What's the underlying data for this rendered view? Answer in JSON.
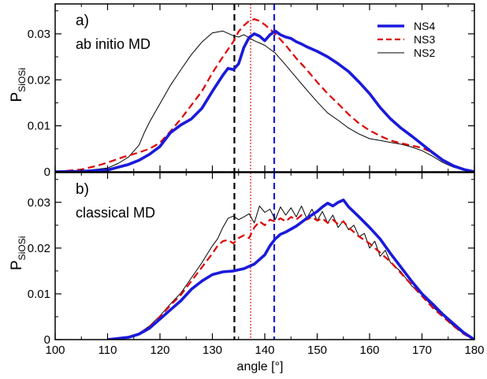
{
  "chart_data": [
    {
      "type": "line",
      "panel_label": "a)",
      "annotation": "ab initio MD",
      "ylabel_main": "P",
      "ylabel_sub": "SiOSi",
      "xlim": [
        100,
        180
      ],
      "ylim": [
        0,
        0.0365
      ],
      "x_ticks": [
        100,
        110,
        120,
        130,
        140,
        150,
        160,
        170,
        180
      ],
      "y_ticks": [
        "0",
        "0.01",
        "0.02",
        "0.03"
      ],
      "y_tick_values": [
        0,
        0.01,
        0.02,
        0.03
      ],
      "vlines": [
        {
          "x": 134.2,
          "color": "#000000",
          "style": "dashed"
        },
        {
          "x": 137.3,
          "color": "#dd0000",
          "style": "dotted"
        },
        {
          "x": 141.8,
          "color": "#1a1adb",
          "style": "dashed"
        }
      ],
      "legend": [
        {
          "name": "NS4",
          "color": "#1a1adb",
          "style": "solid-thick"
        },
        {
          "name": "NS3",
          "color": "#dd0000",
          "style": "dashed"
        },
        {
          "name": "NS2",
          "color": "#000000",
          "style": "solid-thin"
        }
      ],
      "series": [
        {
          "name": "NS4",
          "color": "#1a1adb",
          "x": [
            100,
            105,
            110,
            112,
            114,
            116,
            118,
            120,
            122,
            124,
            126,
            128,
            130,
            132,
            133,
            134,
            135,
            136,
            137,
            138,
            139,
            140,
            141,
            142,
            143,
            144,
            145,
            146,
            147,
            148,
            150,
            152,
            154,
            156,
            158,
            160,
            162,
            164,
            166,
            168,
            170,
            172,
            174,
            176,
            178,
            180
          ],
          "y": [
            0,
            0.0001,
            0.0004,
            0.001,
            0.0016,
            0.0025,
            0.0038,
            0.0055,
            0.0085,
            0.0102,
            0.0115,
            0.0138,
            0.0175,
            0.021,
            0.0225,
            0.0222,
            0.0235,
            0.027,
            0.0292,
            0.03,
            0.0295,
            0.0285,
            0.0298,
            0.0306,
            0.0298,
            0.0293,
            0.029,
            0.0283,
            0.0278,
            0.0272,
            0.0262,
            0.025,
            0.0235,
            0.0218,
            0.0195,
            0.017,
            0.014,
            0.0115,
            0.0095,
            0.0078,
            0.006,
            0.0042,
            0.0025,
            0.0013,
            0.0005,
            0
          ]
        },
        {
          "name": "NS3",
          "color": "#dd0000",
          "x": [
            100,
            105,
            108,
            110,
            113,
            116,
            118,
            120,
            122,
            124,
            126,
            128,
            130,
            132,
            134,
            135,
            136,
            137,
            138,
            139,
            140,
            141,
            142,
            144,
            146,
            148,
            150,
            152,
            154,
            156,
            158,
            160,
            162,
            164,
            166,
            168,
            170,
            172,
            174,
            176,
            178,
            180
          ],
          "y": [
            0,
            0.0005,
            0.0013,
            0.002,
            0.0032,
            0.0042,
            0.005,
            0.0063,
            0.0088,
            0.0115,
            0.0145,
            0.0175,
            0.0215,
            0.025,
            0.0283,
            0.0305,
            0.0318,
            0.0328,
            0.0332,
            0.0328,
            0.032,
            0.031,
            0.03,
            0.0275,
            0.0247,
            0.0222,
            0.0195,
            0.017,
            0.0148,
            0.0125,
            0.0105,
            0.009,
            0.0078,
            0.0068,
            0.0062,
            0.0057,
            0.0052,
            0.0042,
            0.0025,
            0.0012,
            0.0005,
            0
          ]
        },
        {
          "name": "NS2",
          "color": "#000000",
          "x": [
            100,
            105,
            110,
            112,
            114,
            116,
            117,
            118,
            119,
            120,
            122,
            124,
            126,
            128,
            130,
            132,
            134,
            135,
            136,
            138,
            140,
            142,
            144,
            146,
            148,
            150,
            152,
            154,
            156,
            158,
            160,
            162,
            164,
            166,
            168,
            170,
            172,
            174,
            176,
            178,
            180
          ],
          "y": [
            0,
            0.0002,
            0.0008,
            0.0018,
            0.0032,
            0.0058,
            0.0085,
            0.0108,
            0.0128,
            0.0148,
            0.0188,
            0.0222,
            0.0255,
            0.0282,
            0.0302,
            0.0306,
            0.0296,
            0.0293,
            0.0298,
            0.0285,
            0.0275,
            0.0258,
            0.0232,
            0.0205,
            0.0178,
            0.0152,
            0.0128,
            0.0112,
            0.0095,
            0.0082,
            0.0072,
            0.0068,
            0.0064,
            0.006,
            0.0054,
            0.0046,
            0.0034,
            0.002,
            0.001,
            0.0003,
            0
          ]
        }
      ]
    },
    {
      "type": "line",
      "panel_label": "b)",
      "annotation": "classical MD",
      "ylabel_main": "P",
      "ylabel_sub": "SiOSi",
      "xlabel": "angle [°]",
      "xlim": [
        100,
        180
      ],
      "ylim": [
        0,
        0.0365
      ],
      "x_ticks": [
        100,
        110,
        120,
        130,
        140,
        150,
        160,
        170,
        180
      ],
      "y_ticks": [
        "0",
        "0.01",
        "0.02",
        "0.03"
      ],
      "y_tick_values": [
        0,
        0.01,
        0.02,
        0.03
      ],
      "vlines": [
        {
          "x": 134.2,
          "color": "#000000",
          "style": "dashed"
        },
        {
          "x": 137.3,
          "color": "#dd0000",
          "style": "dotted"
        },
        {
          "x": 141.8,
          "color": "#1a1adb",
          "style": "dashed"
        }
      ],
      "series": [
        {
          "name": "NS4",
          "color": "#1a1adb",
          "x": [
            110,
            114,
            116,
            118,
            120,
            122,
            124,
            126,
            128,
            130,
            132,
            134,
            136,
            138,
            140,
            141,
            142,
            143,
            144,
            146,
            148,
            150,
            151,
            152,
            153,
            154,
            155,
            156,
            158,
            160,
            162,
            164,
            166,
            168,
            170,
            172,
            174,
            176,
            178,
            180
          ],
          "y": [
            0,
            0.0005,
            0.0012,
            0.0025,
            0.0045,
            0.0065,
            0.0085,
            0.011,
            0.0128,
            0.0142,
            0.0148,
            0.015,
            0.0155,
            0.0165,
            0.0185,
            0.0205,
            0.022,
            0.023,
            0.0235,
            0.0248,
            0.0265,
            0.028,
            0.029,
            0.0298,
            0.0292,
            0.03,
            0.0305,
            0.029,
            0.0268,
            0.0245,
            0.022,
            0.0188,
            0.0158,
            0.0128,
            0.01,
            0.0078,
            0.0055,
            0.0035,
            0.0015,
            0
          ]
        },
        {
          "name": "NS3",
          "color": "#dd0000",
          "x": [
            110,
            114,
            116,
            118,
            120,
            122,
            124,
            126,
            128,
            130,
            131,
            132,
            133,
            134,
            135,
            136,
            137,
            138,
            139,
            140,
            141,
            142,
            143,
            144,
            145,
            146,
            147,
            148,
            149,
            150,
            151,
            152,
            153,
            154,
            155,
            156,
            158,
            160,
            162,
            164,
            166,
            168,
            170,
            172,
            174,
            176,
            178,
            180
          ],
          "y": [
            0,
            0.0006,
            0.0013,
            0.0028,
            0.005,
            0.0075,
            0.0098,
            0.0128,
            0.0158,
            0.0188,
            0.0205,
            0.0215,
            0.0218,
            0.021,
            0.0222,
            0.0228,
            0.0222,
            0.0245,
            0.0258,
            0.025,
            0.0262,
            0.0258,
            0.0265,
            0.0258,
            0.0268,
            0.0262,
            0.0272,
            0.0262,
            0.0268,
            0.026,
            0.0265,
            0.0255,
            0.0262,
            0.0252,
            0.0258,
            0.0245,
            0.0225,
            0.021,
            0.019,
            0.017,
            0.0145,
            0.012,
            0.0095,
            0.007,
            0.005,
            0.003,
            0.0012,
            0
          ]
        },
        {
          "name": "NS2",
          "color": "#000000",
          "x": [
            110,
            114,
            116,
            118,
            120,
            122,
            124,
            126,
            128,
            130,
            131,
            132,
            133,
            134,
            135,
            136,
            137,
            138,
            139,
            140,
            141,
            142,
            143,
            144,
            145,
            146,
            147,
            148,
            149,
            150,
            151,
            152,
            153,
            154,
            155,
            156,
            157,
            158,
            159,
            160,
            161,
            162,
            163,
            164,
            166,
            168,
            170,
            172,
            174,
            176,
            178,
            180
          ],
          "y": [
            0,
            0.0006,
            0.0014,
            0.003,
            0.0052,
            0.0078,
            0.0102,
            0.0135,
            0.0168,
            0.0205,
            0.022,
            0.0245,
            0.0265,
            0.027,
            0.0262,
            0.0268,
            0.0275,
            0.0255,
            0.0292,
            0.0278,
            0.0285,
            0.0262,
            0.029,
            0.0272,
            0.0288,
            0.0268,
            0.0292,
            0.0265,
            0.0285,
            0.026,
            0.028,
            0.0255,
            0.0272,
            0.0245,
            0.026,
            0.024,
            0.025,
            0.0225,
            0.0232,
            0.02,
            0.0215,
            0.0182,
            0.0195,
            0.0168,
            0.0148,
            0.0118,
            0.0098,
            0.0072,
            0.0052,
            0.003,
            0.0012,
            0
          ]
        }
      ]
    }
  ]
}
